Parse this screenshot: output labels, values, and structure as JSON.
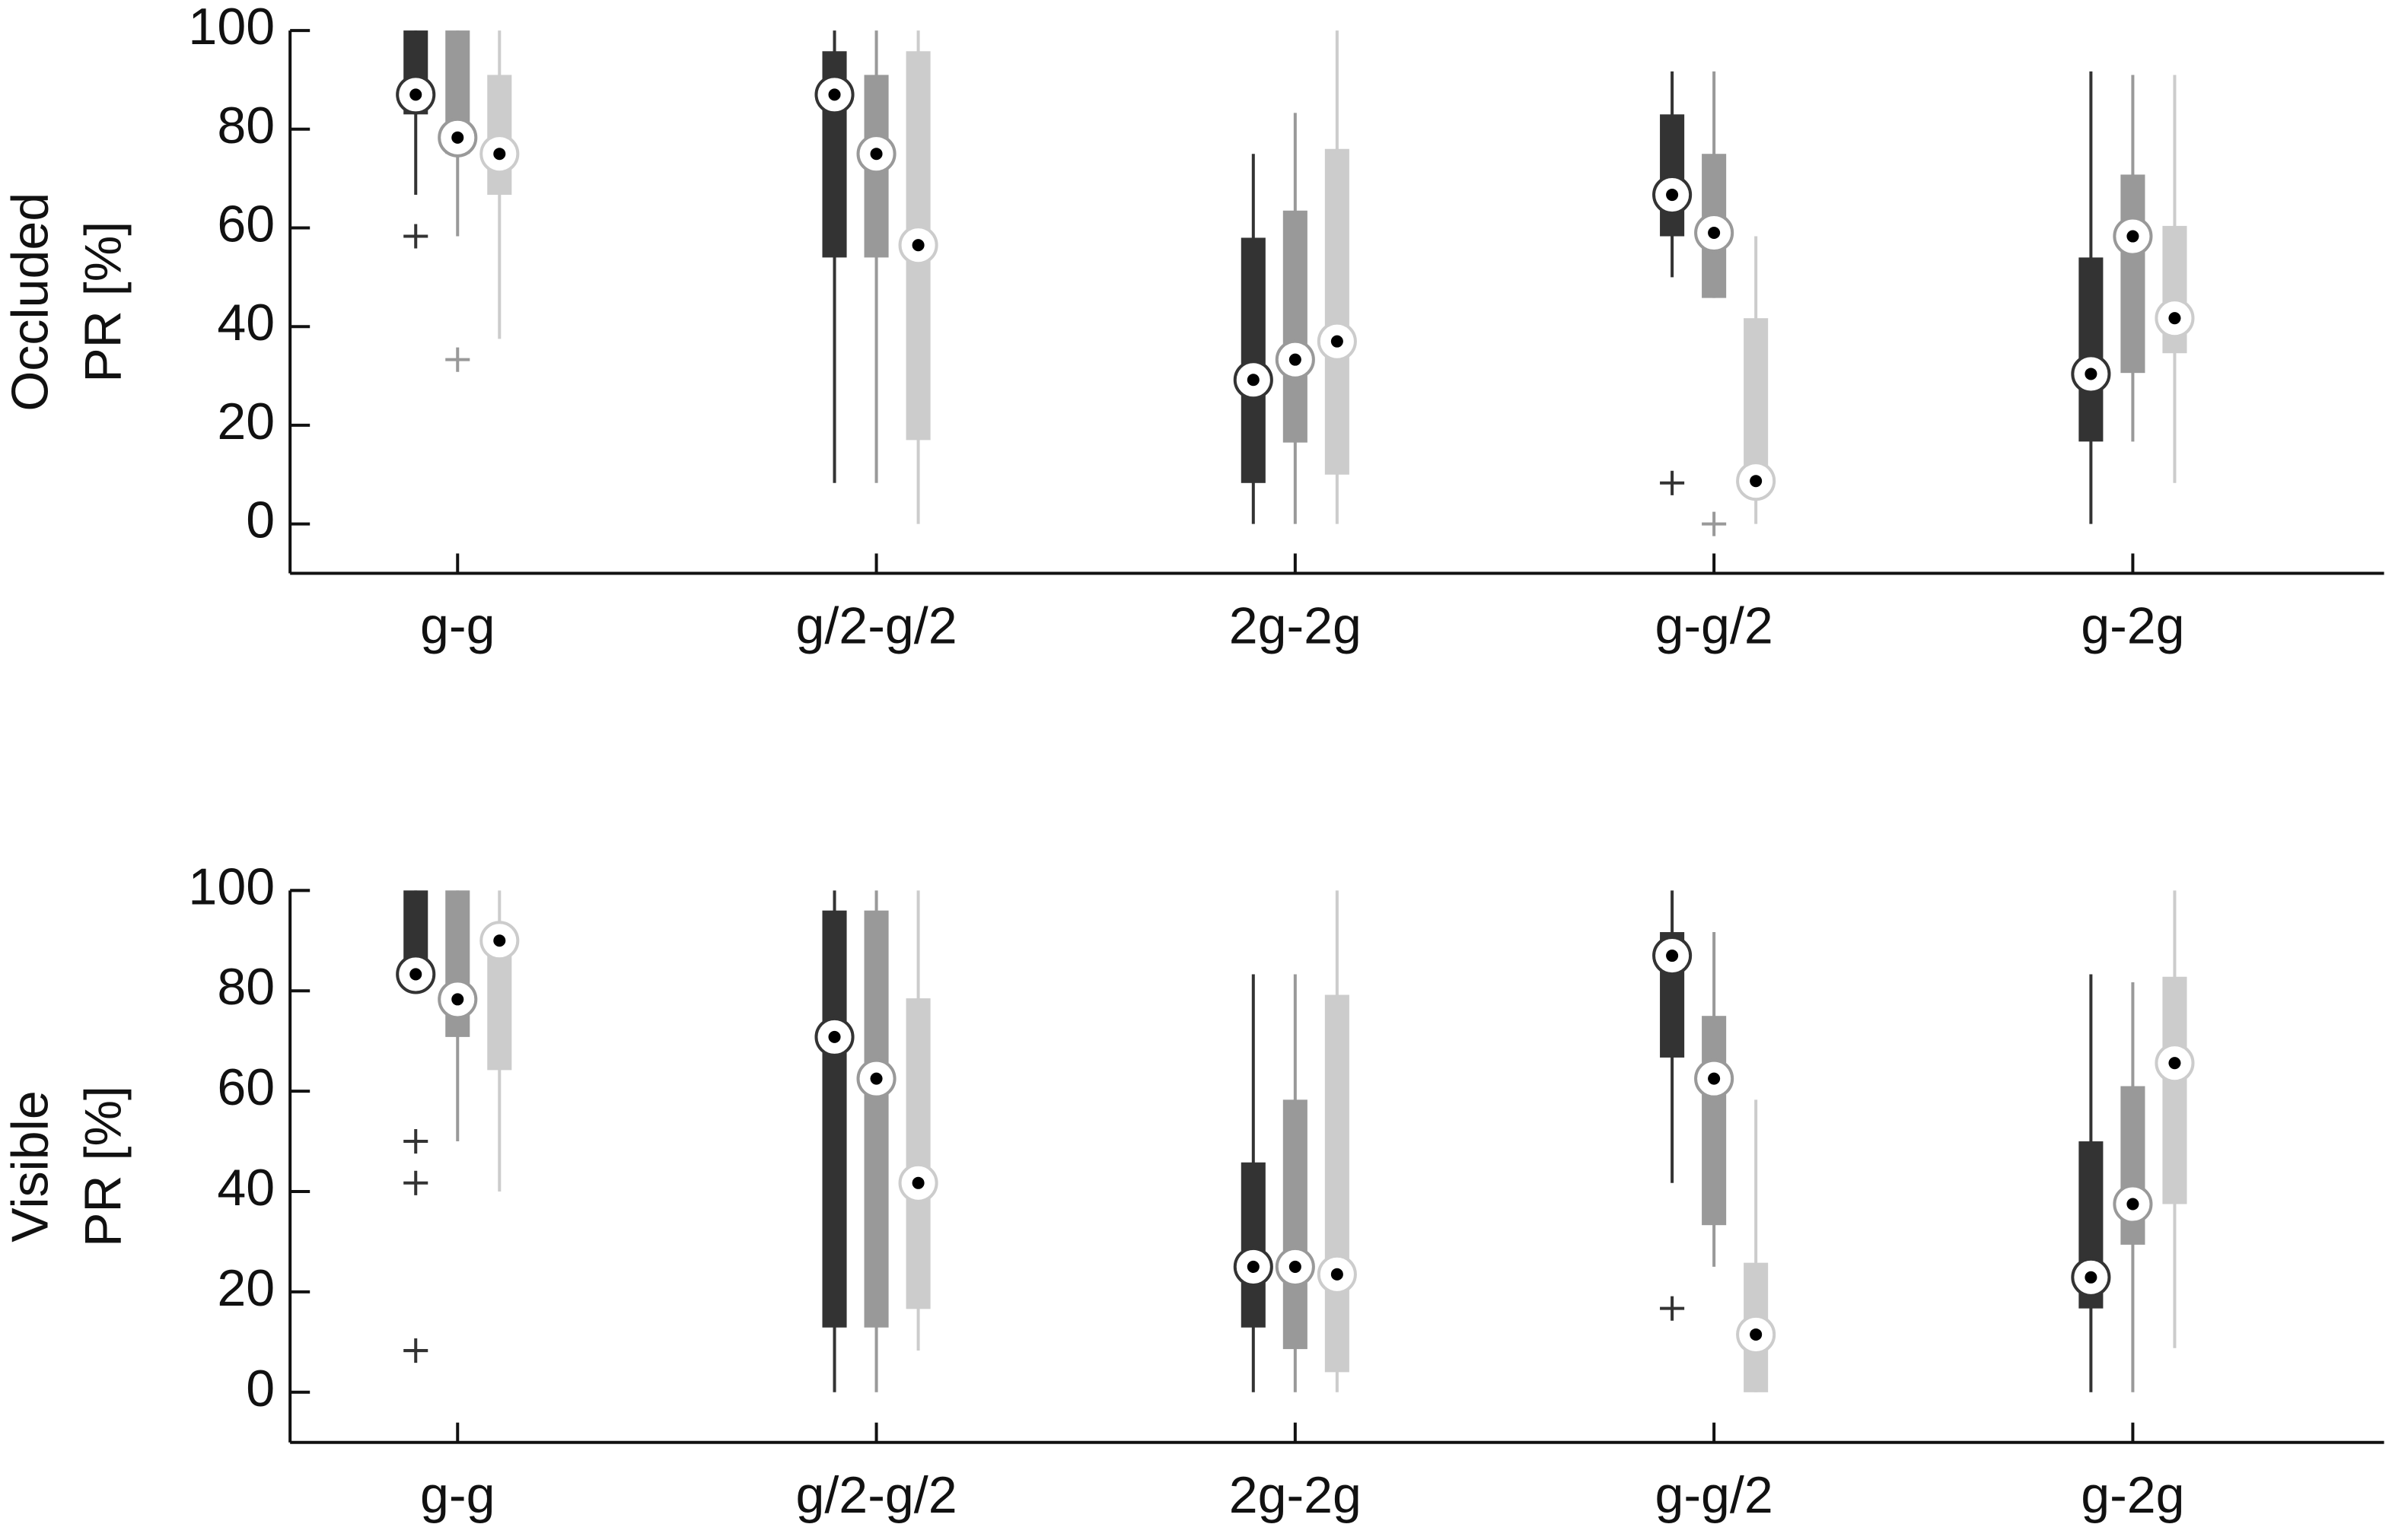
{
  "chart_data": [
    {
      "type": "box",
      "ylabel": [
        "Occluded",
        "PR [%]"
      ],
      "categories": [
        "g-g",
        "g/2-g/2",
        "2g-2g",
        "g-g/2",
        "g-2g"
      ],
      "ylim": [
        -10,
        100
      ],
      "yticks": [
        0,
        20,
        40,
        60,
        80,
        100
      ],
      "series": [
        {
          "color": "#333333",
          "values": [
            {
              "whislo": 66.7,
              "q1": 83,
              "med": 87,
              "q3": 100,
              "whishi": 100,
              "fliers": [
                58.3
              ]
            },
            {
              "whislo": 8.3,
              "q1": 54,
              "med": 87,
              "q3": 95.8,
              "whishi": 100,
              "fliers": []
            },
            {
              "whislo": 0,
              "q1": 8.3,
              "med": 29.2,
              "q3": 58,
              "whishi": 75,
              "fliers": []
            },
            {
              "whislo": 50,
              "q1": 58.3,
              "med": 66.7,
              "q3": 83,
              "whishi": 91.7,
              "fliers": [
                8.3
              ]
            },
            {
              "whislo": 0,
              "q1": 16.7,
              "med": 30.4,
              "q3": 54,
              "whishi": 91.7,
              "fliers": []
            }
          ]
        },
        {
          "color": "#999999",
          "values": [
            {
              "whislo": 58.3,
              "q1": 75,
              "med": 78.3,
              "q3": 100,
              "whishi": 100,
              "fliers": [
                33.3
              ]
            },
            {
              "whislo": 8.3,
              "q1": 54,
              "med": 75,
              "q3": 91,
              "whishi": 100,
              "fliers": []
            },
            {
              "whislo": 0,
              "q1": 16.5,
              "med": 33.3,
              "q3": 63.5,
              "whishi": 83.3,
              "fliers": []
            },
            {
              "whislo": 45.8,
              "q1": 45.8,
              "med": 59,
              "q3": 75,
              "whishi": 91.7,
              "fliers": [
                0
              ]
            },
            {
              "whislo": 16.7,
              "q1": 30.6,
              "med": 58.3,
              "q3": 70.8,
              "whishi": 91,
              "fliers": []
            }
          ]
        },
        {
          "color": "#cccccc",
          "values": [
            {
              "whislo": 37.5,
              "q1": 66.7,
              "med": 75,
              "q3": 91,
              "whishi": 100,
              "fliers": []
            },
            {
              "whislo": 0,
              "q1": 17,
              "med": 56.5,
              "q3": 95.8,
              "whishi": 100,
              "fliers": []
            },
            {
              "whislo": 0,
              "q1": 10,
              "med": 37,
              "q3": 76,
              "whishi": 100,
              "fliers": []
            },
            {
              "whislo": 0,
              "q1": 8.3,
              "med": 8.7,
              "q3": 41.7,
              "whishi": 58.3,
              "fliers": []
            },
            {
              "whislo": 8.3,
              "q1": 34.6,
              "med": 41.7,
              "q3": 60.4,
              "whishi": 91,
              "fliers": []
            }
          ]
        }
      ]
    },
    {
      "type": "box",
      "ylabel": [
        "Visible",
        "PR [%]"
      ],
      "categories": [
        "g-g",
        "g/2-g/2",
        "2g-2g",
        "g-g/2",
        "g-2g"
      ],
      "ylim": [
        -10,
        100
      ],
      "yticks": [
        0,
        20,
        40,
        60,
        80,
        100
      ],
      "series": [
        {
          "color": "#333333",
          "values": [
            {
              "whislo": 83.3,
              "q1": 83.3,
              "med": 83.3,
              "q3": 100,
              "whishi": 100,
              "fliers": [
                50,
                41.7,
                8.3
              ]
            },
            {
              "whislo": 0,
              "q1": 12.9,
              "med": 70.8,
              "q3": 96,
              "whishi": 100,
              "fliers": []
            },
            {
              "whislo": 0,
              "q1": 12.9,
              "med": 25,
              "q3": 45.8,
              "whishi": 83.3,
              "fliers": []
            },
            {
              "whislo": 41.7,
              "q1": 66.7,
              "med": 87,
              "q3": 91.7,
              "whishi": 100,
              "fliers": [
                16.7
              ]
            },
            {
              "whislo": 0,
              "q1": 16.7,
              "med": 22.9,
              "q3": 50,
              "whishi": 83.3,
              "fliers": []
            }
          ]
        },
        {
          "color": "#999999",
          "values": [
            {
              "whislo": 50,
              "q1": 70.8,
              "med": 78.3,
              "q3": 100,
              "whishi": 100,
              "fliers": []
            },
            {
              "whislo": 0,
              "q1": 12.9,
              "med": 62.5,
              "q3": 96,
              "whishi": 100,
              "fliers": []
            },
            {
              "whislo": 0,
              "q1": 8.6,
              "med": 25,
              "q3": 58.3,
              "whishi": 83.3,
              "fliers": []
            },
            {
              "whislo": 25,
              "q1": 33.3,
              "med": 62.5,
              "q3": 75,
              "whishi": 91.7,
              "fliers": []
            },
            {
              "whislo": 0,
              "q1": 29.4,
              "med": 37.5,
              "q3": 61,
              "whishi": 81.7,
              "fliers": []
            }
          ]
        },
        {
          "color": "#cccccc",
          "values": [
            {
              "whislo": 40,
              "q1": 64.2,
              "med": 90,
              "q3": 90,
              "whishi": 100,
              "fliers": []
            },
            {
              "whislo": 8.3,
              "q1": 16.6,
              "med": 41.7,
              "q3": 78.5,
              "whishi": 100,
              "fliers": []
            },
            {
              "whislo": 0,
              "q1": 4,
              "med": 23.5,
              "q3": 79.2,
              "whishi": 100,
              "fliers": []
            },
            {
              "whislo": 0,
              "q1": 0,
              "med": 11.5,
              "q3": 25.8,
              "whishi": 58.3,
              "fliers": []
            },
            {
              "whislo": 8.8,
              "q1": 37.5,
              "med": 65.6,
              "q3": 82.8,
              "whishi": 100,
              "fliers": []
            }
          ]
        }
      ]
    }
  ]
}
